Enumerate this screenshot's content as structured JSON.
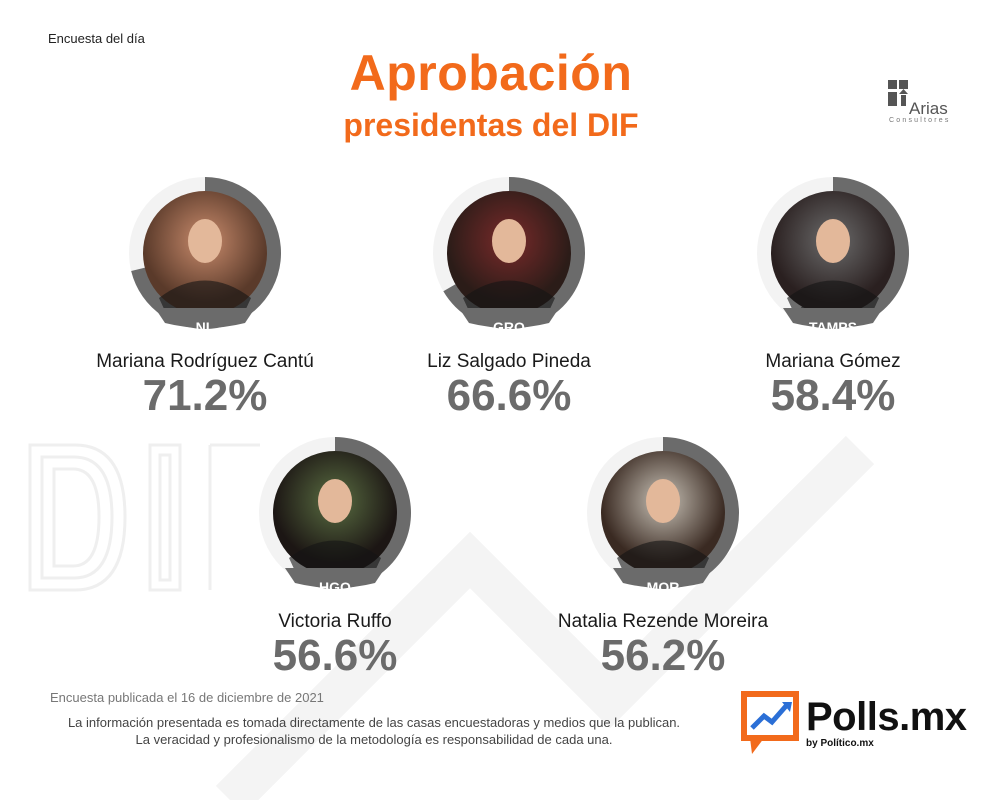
{
  "header": {
    "top_label": "Encuesta del día",
    "title_line1": "Aprobación",
    "title_line2": "presidentas del DIF"
  },
  "arias_logo": {
    "name": "Arias",
    "subtitle": "Consultores"
  },
  "colors": {
    "accent": "#f26a1b",
    "ring": "#6b6b6b",
    "ring_track": "#f3f3f3"
  },
  "chart_data": {
    "type": "radial-bar",
    "title": "Aprobación presidentas del DIF",
    "unit": "%",
    "ylim": [
      0,
      100
    ],
    "items": [
      {
        "name": "Mariana Rodríguez Cantú",
        "state": "NL",
        "value": 71.2,
        "value_label": "71.2%"
      },
      {
        "name": "Liz Salgado Pineda",
        "state": "GRO",
        "value": 66.6,
        "value_label": "66.6%"
      },
      {
        "name": "Mariana Gómez",
        "state": "TAMPS",
        "value": 58.4,
        "value_label": "58.4%"
      },
      {
        "name": "Victoria Ruffo",
        "state": "HGO",
        "value": 56.6,
        "value_label": "56.6%"
      },
      {
        "name": "Natalia Rezende Moreira",
        "state": "MOR",
        "value": 56.2,
        "value_label": "56.2%"
      }
    ]
  },
  "footer": {
    "published": "Encuesta publicada el 16 de diciembre de 2021",
    "disclaimer_line1": "La información presentada es tomada directamente de las casas encuestadoras y medios que la publican.",
    "disclaimer_line2": "La veracidad y profesionalismo de la metodología es responsabilidad de cada una."
  },
  "brand": {
    "name": "Polls.mx",
    "by": "by Político.mx"
  }
}
